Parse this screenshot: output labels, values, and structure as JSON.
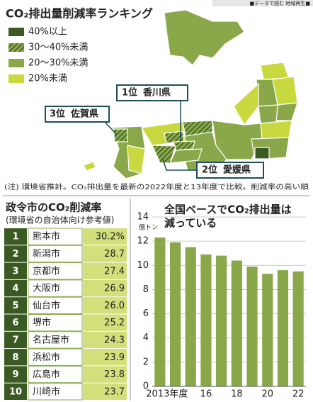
{
  "header_tag": "■データで読む 地域再生■",
  "map": {
    "title": "CO₂排出量削減率ランキング",
    "legend": [
      "40%以上",
      "30〜40%未満",
      "20〜30%未満",
      "20%未満"
    ],
    "callouts": [
      {
        "rank": "1位",
        "name": "香川県"
      },
      {
        "rank": "3位",
        "name": "佐賀県"
      },
      {
        "rank": "2位",
        "name": "愛媛県"
      }
    ],
    "note": "(注) 環境省推計。CO₂排出量を最新の2022年度と13年度で比較。削減率の高い順"
  },
  "table": {
    "title": "政令市のCO₂削減率",
    "subtitle": "(環境省の自治体向け参考値)",
    "rows": [
      [
        "1",
        "熊本市",
        "30.2%"
      ],
      [
        "2",
        "新潟市",
        "28.7"
      ],
      [
        "3",
        "京都市",
        "27.4"
      ],
      [
        "4",
        "大阪市",
        "26.9"
      ],
      [
        "5",
        "仙台市",
        "26.0"
      ],
      [
        "6",
        "堺市",
        "25.2"
      ],
      [
        "7",
        "名古屋市",
        "24.3"
      ],
      [
        "8",
        "浜松市",
        "23.9"
      ],
      [
        "9",
        "広島市",
        "23.8"
      ],
      [
        "10",
        "川崎市",
        "23.7"
      ]
    ]
  },
  "chart_data": {
    "type": "bar",
    "title_lines": [
      "全国ベースでCO₂排出量は",
      "減っている"
    ],
    "y_unit": "億トン",
    "categories": [
      "2013年度",
      null,
      null,
      "16",
      null,
      "18",
      null,
      "20",
      null,
      "22"
    ],
    "values": [
      12.3,
      11.9,
      11.5,
      10.9,
      10.8,
      10.4,
      9.9,
      9.3,
      9.6,
      9.5
    ],
    "color": "#8aa84a",
    "ylim": [
      0,
      14
    ],
    "yticks": [
      0,
      2,
      4,
      6,
      8,
      10,
      12,
      14
    ],
    "grid": true
  }
}
